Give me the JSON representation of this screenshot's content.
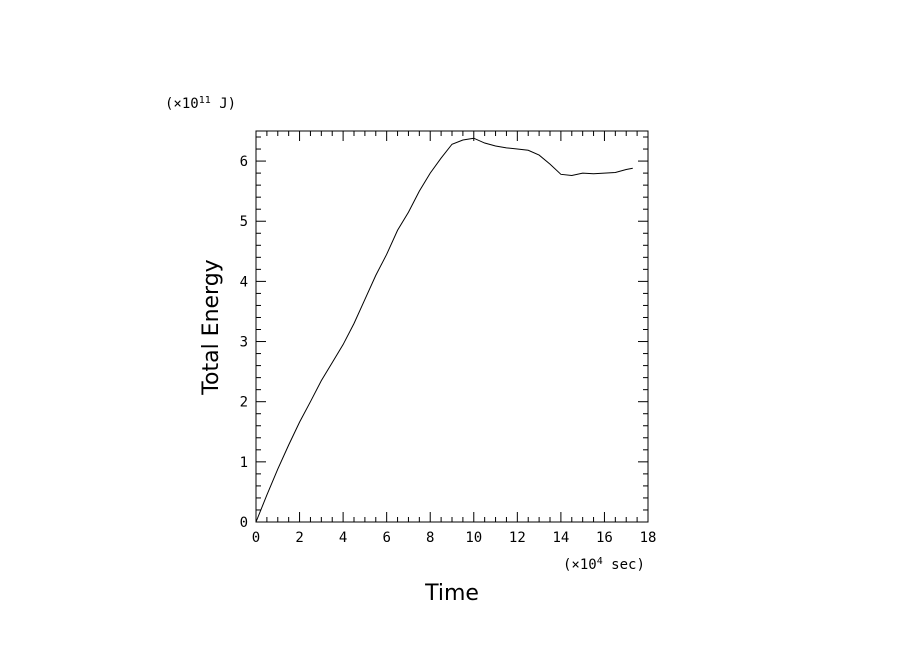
{
  "chart_data": {
    "type": "line",
    "xlabel": "Time",
    "ylabel": "Total Energy",
    "x_unit": {
      "prefix": "(×10",
      "exp": "4",
      "suffix": " sec)"
    },
    "y_unit": {
      "prefix": "(×10",
      "exp": "11",
      "suffix": " J)"
    },
    "xlim": [
      0,
      18
    ],
    "ylim": [
      0,
      6.5
    ],
    "x_ticks": [
      0,
      2,
      4,
      6,
      8,
      10,
      12,
      14,
      16,
      18
    ],
    "y_ticks": [
      0,
      1,
      2,
      3,
      4,
      5,
      6
    ],
    "x_tick_labels": [
      "0",
      "2",
      "4",
      "6",
      "8",
      "10",
      "12",
      "14",
      "16",
      "18"
    ],
    "y_tick_labels": [
      "0",
      "1",
      "2",
      "3",
      "4",
      "5",
      "6"
    ],
    "grid": false,
    "series": [
      {
        "color": "#000000",
        "x": [
          0,
          0.5,
          1,
          1.5,
          2,
          2.5,
          3,
          3.5,
          4,
          4.5,
          5,
          5.5,
          6,
          6.5,
          7,
          7.5,
          8,
          8.5,
          9,
          9.5,
          10,
          10.5,
          11,
          11.5,
          12,
          12.5,
          13,
          13.5,
          14,
          14.5,
          15,
          15.5,
          16,
          16.5,
          17,
          17.3
        ],
        "y": [
          0,
          0.45,
          0.88,
          1.28,
          1.66,
          2.0,
          2.35,
          2.65,
          2.95,
          3.3,
          3.7,
          4.1,
          4.45,
          4.85,
          5.15,
          5.5,
          5.8,
          6.05,
          6.28,
          6.35,
          6.38,
          6.3,
          6.25,
          6.22,
          6.2,
          6.18,
          6.1,
          5.95,
          5.78,
          5.76,
          5.8,
          5.79,
          5.8,
          5.81,
          5.86,
          5.88
        ]
      }
    ]
  }
}
